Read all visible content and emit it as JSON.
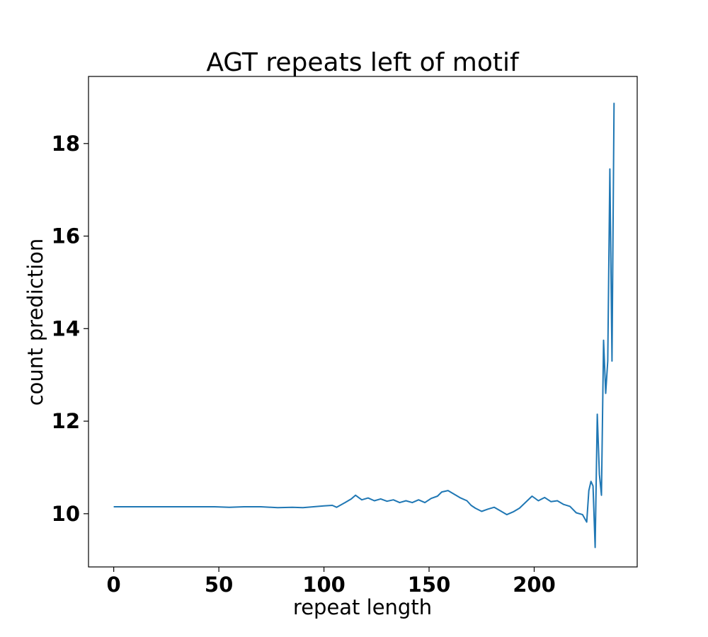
{
  "chart_data": {
    "type": "line",
    "title": "AGT repeats left of motif",
    "xlabel": "repeat length",
    "ylabel": "count prediction",
    "xlim": [
      -12,
      249
    ],
    "ylim": [
      8.85,
      19.45
    ],
    "xticks": [
      0,
      50,
      100,
      150,
      200
    ],
    "yticks": [
      10,
      12,
      14,
      16,
      18
    ],
    "xtick_labels": [
      "0",
      "50",
      "100",
      "150",
      "200"
    ],
    "ytick_labels": [
      "10",
      "12",
      "14",
      "16",
      "18"
    ],
    "grid": false,
    "line_color": "#1f77b4",
    "series": [
      {
        "points": [
          [
            0,
            10.15
          ],
          [
            10,
            10.15
          ],
          [
            20,
            10.15
          ],
          [
            30,
            10.15
          ],
          [
            40,
            10.15
          ],
          [
            48,
            10.15
          ],
          [
            55,
            10.14
          ],
          [
            62,
            10.15
          ],
          [
            70,
            10.15
          ],
          [
            78,
            10.13
          ],
          [
            85,
            10.14
          ],
          [
            90,
            10.13
          ],
          [
            95,
            10.15
          ],
          [
            100,
            10.17
          ],
          [
            104,
            10.18
          ],
          [
            106,
            10.14
          ],
          [
            110,
            10.24
          ],
          [
            113,
            10.32
          ],
          [
            115,
            10.4
          ],
          [
            118,
            10.3
          ],
          [
            121,
            10.34
          ],
          [
            124,
            10.28
          ],
          [
            127,
            10.32
          ],
          [
            130,
            10.27
          ],
          [
            133,
            10.3
          ],
          [
            136,
            10.24
          ],
          [
            139,
            10.28
          ],
          [
            142,
            10.24
          ],
          [
            145,
            10.3
          ],
          [
            148,
            10.24
          ],
          [
            151,
            10.33
          ],
          [
            154,
            10.38
          ],
          [
            156,
            10.47
          ],
          [
            159,
            10.5
          ],
          [
            162,
            10.42
          ],
          [
            165,
            10.34
          ],
          [
            168,
            10.28
          ],
          [
            170,
            10.18
          ],
          [
            172,
            10.12
          ],
          [
            175,
            10.05
          ],
          [
            178,
            10.1
          ],
          [
            181,
            10.14
          ],
          [
            184,
            10.06
          ],
          [
            187,
            9.98
          ],
          [
            190,
            10.04
          ],
          [
            193,
            10.12
          ],
          [
            196,
            10.25
          ],
          [
            199,
            10.38
          ],
          [
            202,
            10.28
          ],
          [
            205,
            10.35
          ],
          [
            208,
            10.26
          ],
          [
            211,
            10.28
          ],
          [
            214,
            10.2
          ],
          [
            217,
            10.16
          ],
          [
            220,
            10.02
          ],
          [
            223,
            9.98
          ],
          [
            225,
            9.82
          ],
          [
            226,
            10.5
          ],
          [
            227,
            10.7
          ],
          [
            228,
            10.6
          ],
          [
            229,
            9.27
          ],
          [
            230,
            12.15
          ],
          [
            231,
            10.85
          ],
          [
            232,
            10.4
          ],
          [
            233,
            13.75
          ],
          [
            234,
            12.6
          ],
          [
            235,
            13.3
          ],
          [
            236,
            17.45
          ],
          [
            237,
            13.3
          ],
          [
            238,
            18.88
          ]
        ]
      }
    ]
  }
}
